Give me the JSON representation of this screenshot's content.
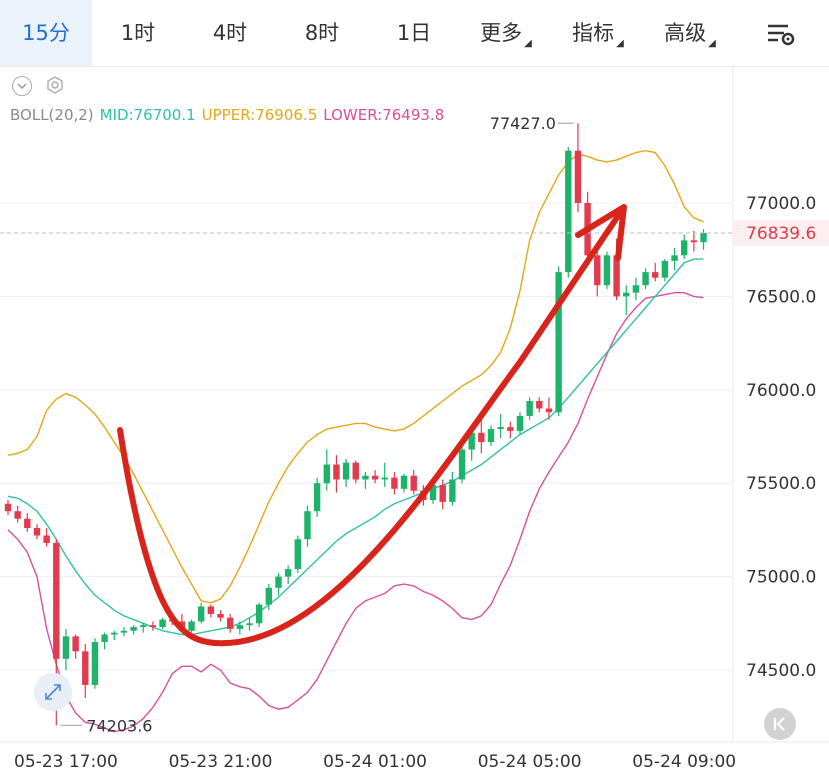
{
  "tabs": [
    {
      "label": "15分",
      "active": true,
      "caret": false
    },
    {
      "label": "1时",
      "active": false,
      "caret": false
    },
    {
      "label": "4时",
      "active": false,
      "caret": false
    },
    {
      "label": "8时",
      "active": false,
      "caret": false
    },
    {
      "label": "1日",
      "active": false,
      "caret": false
    },
    {
      "label": "更多",
      "active": false,
      "caret": true
    },
    {
      "label": "指标",
      "active": false,
      "caret": true
    },
    {
      "label": "高级",
      "active": false,
      "caret": true
    }
  ],
  "icons": {
    "settings": "chart-settings-icon",
    "collapse": "chevron-down-icon",
    "indicator_gear": "gear-icon",
    "expand": "expand-arrows-icon",
    "skip_to_start": "skip-back-icon"
  },
  "indicator": {
    "name": "BOLL(20,2)",
    "mid": "MID:76700.1",
    "upper": "UPPER:76906.5",
    "lower": "LOWER:76493.8"
  },
  "colors": {
    "up": "#1db36b",
    "down": "#e23b4e",
    "mid": "#2fc2a2",
    "upper": "#e3a814",
    "lower": "#d84fa2",
    "annotation": "#d8241a",
    "active_tab": "#1f6fd1"
  },
  "chart_data": {
    "type": "candlestick",
    "y_ticks": [
      "77000.0",
      "76500.0",
      "76000.0",
      "75500.0",
      "75000.0",
      "74500.0"
    ],
    "ylim": [
      74100,
      77550
    ],
    "x_ticks": [
      {
        "label": "05-23 17:00",
        "index": 6
      },
      {
        "label": "05-23 21:00",
        "index": 22
      },
      {
        "label": "05-24 01:00",
        "index": 38
      },
      {
        "label": "05-24 05:00",
        "index": 54
      },
      {
        "label": "05-24 09:00",
        "index": 70
      }
    ],
    "current_price": "76839.6",
    "current_price_value": 76839.6,
    "high_label": "77427.0",
    "high_value": 77427.0,
    "high_index": 59,
    "low_label": "74203.6",
    "low_value": 74203.6,
    "low_index": 5,
    "candles": [
      [
        75390,
        75410,
        75330,
        75350
      ],
      [
        75350,
        75380,
        75290,
        75310
      ],
      [
        75310,
        75340,
        75240,
        75260
      ],
      [
        75260,
        75280,
        75200,
        75220
      ],
      [
        75220,
        75260,
        75160,
        75180
      ],
      [
        75180,
        75200,
        74203.6,
        74560
      ],
      [
        74560,
        74720,
        74500,
        74680
      ],
      [
        74680,
        74690,
        74560,
        74600
      ],
      [
        74600,
        74640,
        74350,
        74420
      ],
      [
        74420,
        74670,
        74400,
        74650
      ],
      [
        74650,
        74700,
        74610,
        74690
      ],
      [
        74690,
        74710,
        74660,
        74700
      ],
      [
        74700,
        74730,
        74680,
        74710
      ],
      [
        74710,
        74740,
        74690,
        74730
      ],
      [
        74730,
        74750,
        74700,
        74740
      ],
      [
        74740,
        74760,
        74710,
        74730
      ],
      [
        74730,
        74780,
        74720,
        74770
      ],
      [
        74770,
        74790,
        74740,
        74760
      ],
      [
        74760,
        74800,
        74700,
        74710
      ],
      [
        74710,
        74770,
        74700,
        74760
      ],
      [
        74760,
        74860,
        74750,
        74840
      ],
      [
        74840,
        74850,
        74780,
        74800
      ],
      [
        74800,
        74820,
        74760,
        74780
      ],
      [
        74780,
        74800,
        74700,
        74720
      ],
      [
        74720,
        74760,
        74690,
        74740
      ],
      [
        74740,
        74780,
        74710,
        74750
      ],
      [
        74750,
        74860,
        74730,
        74850
      ],
      [
        74850,
        74960,
        74820,
        74940
      ],
      [
        74940,
        75020,
        74900,
        75000
      ],
      [
        75000,
        75060,
        74960,
        75040
      ],
      [
        75040,
        75220,
        75020,
        75200
      ],
      [
        75200,
        75380,
        75160,
        75350
      ],
      [
        75350,
        75530,
        75320,
        75500
      ],
      [
        75500,
        75680,
        75460,
        75600
      ],
      [
        75600,
        75650,
        75450,
        75520
      ],
      [
        75520,
        75630,
        75480,
        75610
      ],
      [
        75610,
        75620,
        75500,
        75520
      ],
      [
        75520,
        75560,
        75470,
        75540
      ],
      [
        75540,
        75570,
        75500,
        75520
      ],
      [
        75520,
        75610,
        75480,
        75530
      ],
      [
        75530,
        75560,
        75440,
        75470
      ],
      [
        75470,
        75550,
        75450,
        75540
      ],
      [
        75540,
        75570,
        75440,
        75460
      ],
      [
        75460,
        75490,
        75380,
        75410
      ],
      [
        75410,
        75500,
        75390,
        75490
      ],
      [
        75490,
        75520,
        75360,
        75400
      ],
      [
        75400,
        75560,
        75380,
        75520
      ],
      [
        75520,
        75700,
        75500,
        75680
      ],
      [
        75680,
        75790,
        75620,
        75770
      ],
      [
        75770,
        75840,
        75660,
        75720
      ],
      [
        75720,
        75810,
        75700,
        75790
      ],
      [
        75790,
        75870,
        75740,
        75800
      ],
      [
        75800,
        75830,
        75740,
        75780
      ],
      [
        75780,
        75880,
        75760,
        75860
      ],
      [
        75860,
        75960,
        75840,
        75940
      ],
      [
        75940,
        75960,
        75880,
        75900
      ],
      [
        75900,
        75960,
        75840,
        75880
      ],
      [
        75880,
        76660,
        75860,
        76630
      ],
      [
        76630,
        77300,
        76600,
        77280
      ],
      [
        77280,
        77427,
        76950,
        77000
      ],
      [
        77000,
        77060,
        76680,
        76720
      ],
      [
        76720,
        76740,
        76500,
        76560
      ],
      [
        76560,
        76740,
        76540,
        76720
      ],
      [
        76720,
        76810,
        76480,
        76500
      ],
      [
        76500,
        76560,
        76400,
        76520
      ],
      [
        76520,
        76600,
        76480,
        76560
      ],
      [
        76560,
        76650,
        76540,
        76630
      ],
      [
        76630,
        76680,
        76580,
        76600
      ],
      [
        76600,
        76700,
        76580,
        76690
      ],
      [
        76690,
        76760,
        76640,
        76720
      ],
      [
        76720,
        76830,
        76700,
        76800
      ],
      [
        76800,
        76850,
        76740,
        76790
      ],
      [
        76790,
        76860,
        76750,
        76839.6
      ]
    ],
    "mid": [
      75430,
      75420,
      75390,
      75350,
      75280,
      75200,
      75110,
      75030,
      74960,
      74900,
      74860,
      74820,
      74790,
      74770,
      74750,
      74730,
      74710,
      74700,
      74690,
      74690,
      74700,
      74710,
      74720,
      74730,
      74750,
      74780,
      74810,
      74850,
      74890,
      74940,
      74990,
      75040,
      75090,
      75140,
      75190,
      75230,
      75260,
      75290,
      75320,
      75360,
      75390,
      75410,
      75430,
      75450,
      75470,
      75490,
      75510,
      75540,
      75570,
      75600,
      75640,
      75680,
      75720,
      75760,
      75790,
      75820,
      75850,
      75900,
      75960,
      76020,
      76080,
      76140,
      76200,
      76260,
      76320,
      76380,
      76440,
      76500,
      76560,
      76620,
      76680,
      76700,
      76700
    ],
    "upper": [
      75650,
      75660,
      75680,
      75750,
      75890,
      75950,
      75980,
      75960,
      75920,
      75870,
      75800,
      75720,
      75640,
      75550,
      75450,
      75350,
      75250,
      75150,
      75050,
      74960,
      74870,
      74860,
      74880,
      74950,
      75050,
      75160,
      75280,
      75400,
      75500,
      75590,
      75660,
      75720,
      75760,
      75790,
      75800,
      75810,
      75820,
      75820,
      75800,
      75790,
      75780,
      75790,
      75820,
      75860,
      75900,
      75940,
      75980,
      76020,
      76050,
      76080,
      76130,
      76200,
      76330,
      76530,
      76800,
      76950,
      77050,
      77150,
      77220,
      77260,
      77250,
      77230,
      77220,
      77230,
      77250,
      77270,
      77280,
      77270,
      77200,
      77100,
      76980,
      76920,
      76900
    ],
    "lower": [
      75250,
      75200,
      75130,
      75000,
      74720,
      74530,
      74360,
      74270,
      74220,
      74210,
      74190,
      74170,
      74180,
      74200,
      74240,
      74300,
      74380,
      74480,
      74520,
      74520,
      74490,
      74530,
      74500,
      74430,
      74410,
      74400,
      74360,
      74310,
      74290,
      74300,
      74340,
      74380,
      74450,
      74550,
      74650,
      74750,
      74830,
      74870,
      74890,
      74910,
      74950,
      74960,
      74950,
      74920,
      74900,
      74870,
      74830,
      74780,
      74770,
      74790,
      74850,
      74960,
      75060,
      75200,
      75350,
      75470,
      75560,
      75640,
      75720,
      75820,
      75950,
      76070,
      76190,
      76300,
      76380,
      76440,
      76490,
      76500,
      76510,
      76520,
      76520,
      76500,
      76494
    ]
  }
}
